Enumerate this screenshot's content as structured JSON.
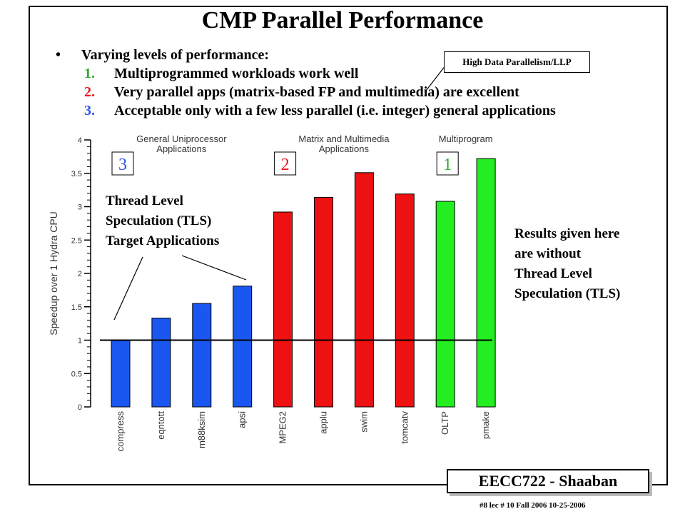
{
  "slide": {
    "title": "CMP Parallel Performance",
    "bullet_lead": "Varying levels of performance:",
    "points": [
      {
        "num": "1.",
        "text": "Multiprogrammed workloads work well",
        "color": "#2eaa2e"
      },
      {
        "num": "2.",
        "text": "Very parallel apps (matrix-based FP and multimedia) are excellent",
        "color": "#e8191e"
      },
      {
        "num": "3.",
        "text": "Acceptable only with a few less parallel (i.e. integer) general applications",
        "color": "#2b54e6"
      }
    ],
    "callout": "High Data Parallelism/LLP",
    "tls_label": [
      "Thread Level",
      "Speculation (TLS)",
      "Target Applications"
    ],
    "results_note": [
      "Results given here",
      "are without",
      "Thread Level",
      "Speculation (TLS)"
    ],
    "footer": {
      "course": "EECC722 - Shaaban",
      "info": "#8   lec # 10    Fall 2006    10-25-2006"
    }
  },
  "chart_data": {
    "type": "bar",
    "ylabel": "Speedup over 1 Hydra CPU",
    "ylim": [
      0,
      4
    ],
    "yticks": [
      0,
      0.5,
      1,
      1.5,
      2,
      2.5,
      3,
      3.5,
      4
    ],
    "baseline": 1,
    "categories": [
      "compress",
      "eqntott",
      "m88ksim",
      "apsi",
      "MPEG2",
      "applu",
      "swim",
      "tomcatv",
      "OLTP",
      "pmake"
    ],
    "values": [
      1.0,
      1.33,
      1.55,
      1.81,
      2.92,
      3.14,
      3.51,
      3.19,
      3.08,
      3.72
    ],
    "bar_colors": [
      "#1a57f0",
      "#1a57f0",
      "#1a57f0",
      "#1a57f0",
      "#ee1111",
      "#ee1111",
      "#ee1111",
      "#ee1111",
      "#22ee22",
      "#22ee22"
    ],
    "groups": [
      {
        "label": "General Uniprocessor Applications",
        "rank": "3",
        "rank_color": "#2b54e6",
        "start": 0,
        "end": 3
      },
      {
        "label": "Matrix and Multimedia Applications",
        "rank": "2",
        "rank_color": "#e8191e",
        "start": 4,
        "end": 7
      },
      {
        "label": "Multiprogram",
        "rank": "1",
        "rank_color": "#2eaa2e",
        "start": 8,
        "end": 9
      }
    ]
  }
}
